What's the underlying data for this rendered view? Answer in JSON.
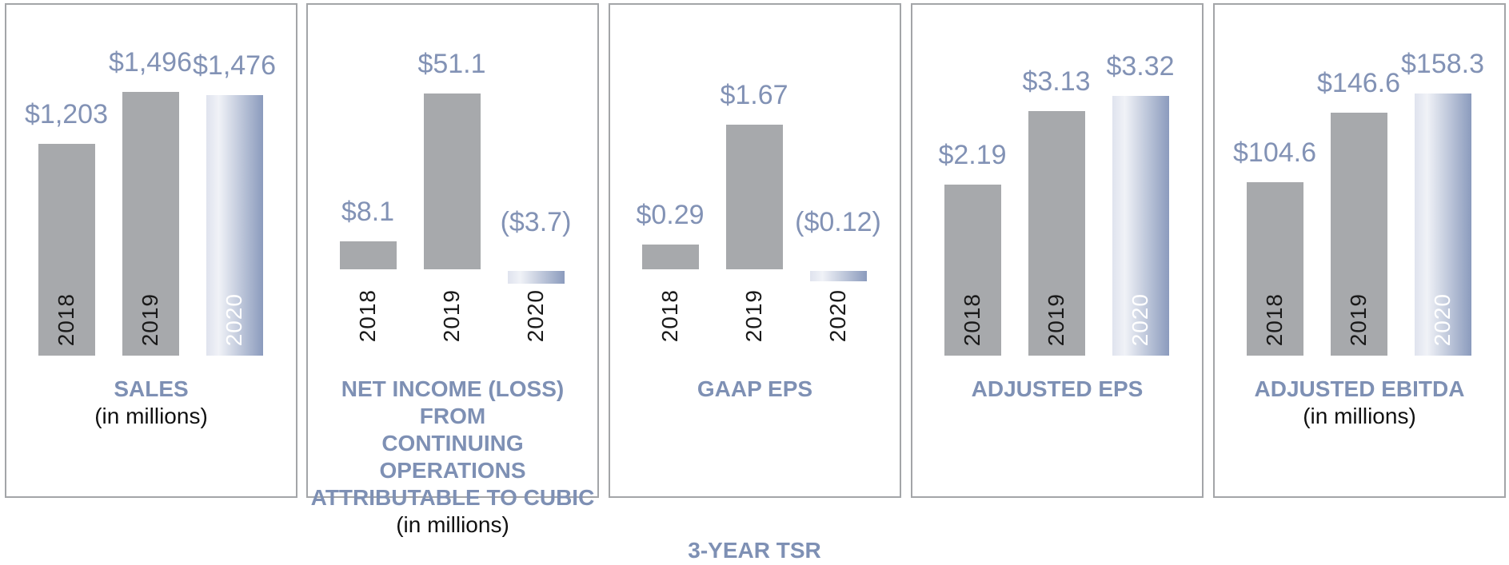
{
  "footer": {
    "label": "3-YEAR TSR"
  },
  "colors": {
    "bar_gray": "#a7a9ac",
    "value_text": "#8292b5",
    "title_text": "#7e90b4",
    "footer_text": "#7e90b4",
    "panel_border": "#a3a5a8",
    "year_label_dark": "#1a1a1a",
    "year_label_light": "#ffffff",
    "gradient_left": "#dfe3ee",
    "gradient_light": "#f0f2f7",
    "gradient_right": "#8b9bbd"
  },
  "chart_data": [
    {
      "type": "bar",
      "title_lines": [
        "SALES"
      ],
      "subtitle": "(in millions)",
      "categories": [
        "2018",
        "2019",
        "2020"
      ],
      "values": [
        1203,
        1496,
        1476
      ],
      "value_labels": [
        "$1,203",
        "$1,496",
        "$1,476"
      ],
      "highlight_index": 2,
      "year_labels_position": "inside",
      "ylim": [
        0,
        1496
      ],
      "grid": false,
      "legend": "none"
    },
    {
      "type": "bar",
      "title_lines": [
        "NET INCOME (LOSS) FROM",
        "CONTINUING OPERATIONS",
        "ATTRIBUTABLE TO CUBIC"
      ],
      "subtitle": "(in millions)",
      "categories": [
        "2018",
        "2019",
        "2020"
      ],
      "values": [
        8.1,
        51.1,
        -3.7
      ],
      "value_labels": [
        "$8.1",
        "$51.1",
        "($3.7)"
      ],
      "highlight_index": 2,
      "year_labels_position": "below",
      "ylim": [
        -3.7,
        51.1
      ],
      "grid": false,
      "legend": "none"
    },
    {
      "type": "bar",
      "title_lines": [
        "GAAP EPS"
      ],
      "subtitle": "",
      "categories": [
        "2018",
        "2019",
        "2020"
      ],
      "values": [
        0.29,
        1.67,
        -0.12
      ],
      "value_labels": [
        "$0.29",
        "$1.67",
        "($0.12)"
      ],
      "highlight_index": 2,
      "year_labels_position": "below",
      "ylim": [
        -0.12,
        1.67
      ],
      "grid": false,
      "legend": "none"
    },
    {
      "type": "bar",
      "title_lines": [
        "ADJUSTED EPS"
      ],
      "subtitle": "",
      "categories": [
        "2018",
        "2019",
        "2020"
      ],
      "values": [
        2.19,
        3.13,
        3.32
      ],
      "value_labels": [
        "$2.19",
        "$3.13",
        "$3.32"
      ],
      "highlight_index": 2,
      "year_labels_position": "inside",
      "ylim": [
        0,
        3.32
      ],
      "grid": false,
      "legend": "none"
    },
    {
      "type": "bar",
      "title_lines": [
        "ADJUSTED EBITDA"
      ],
      "subtitle": "(in millions)",
      "categories": [
        "2018",
        "2019",
        "2020"
      ],
      "values": [
        104.6,
        146.6,
        158.3
      ],
      "value_labels": [
        "$104.6",
        "$146.6",
        "$158.3"
      ],
      "highlight_index": 2,
      "year_labels_position": "inside",
      "ylim": [
        0,
        158.3
      ],
      "grid": false,
      "legend": "none"
    }
  ]
}
